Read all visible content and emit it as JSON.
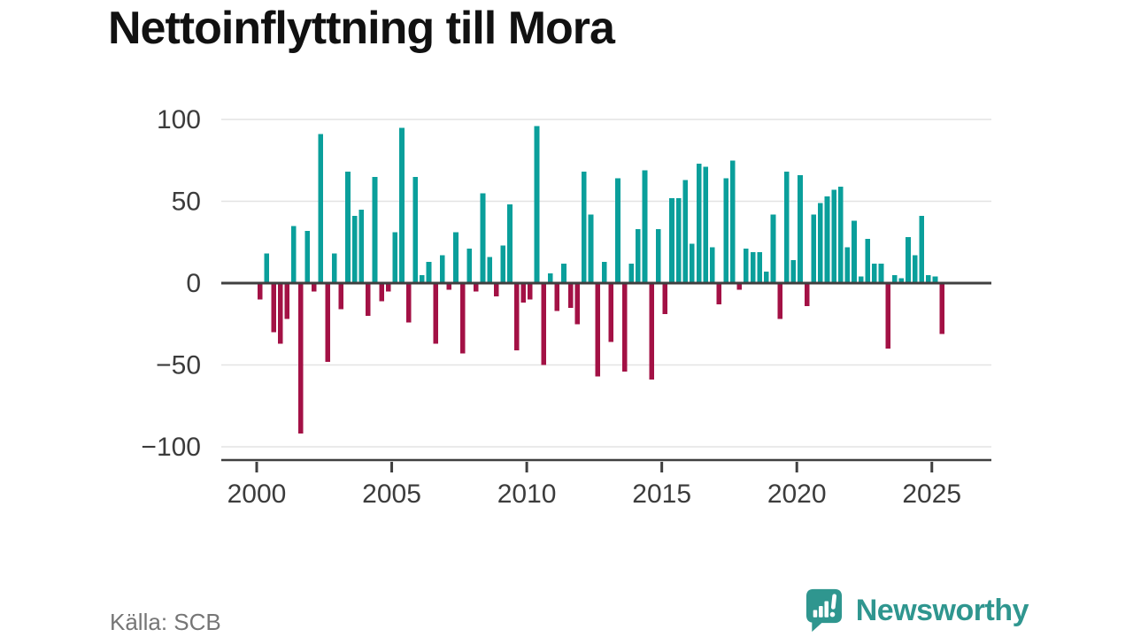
{
  "title": "Nettoinflyttning till Mora",
  "source": "Källa: SCB",
  "brand": {
    "name": "Newsworthy",
    "color": "#2f968f"
  },
  "chart_data": {
    "type": "bar",
    "title": "Nettoinflyttning till Mora",
    "xlabel": "",
    "ylabel": "",
    "period": "quarterly",
    "start": "2000Q1",
    "end": "2025Q2",
    "grid": true,
    "ylim": [
      -100,
      100
    ],
    "yticks": [
      100,
      50,
      0,
      -50,
      -100
    ],
    "ytick_labels": [
      "100",
      "50",
      "0",
      "−50",
      "−100"
    ],
    "xticks": [
      2000,
      2005,
      2010,
      2015,
      2020,
      2025
    ],
    "xtick_labels": [
      "2000",
      "2005",
      "2010",
      "2015",
      "2020",
      "2025"
    ],
    "positive_color": "#0a9f9b",
    "negative_color": "#a31145",
    "values": [
      -10,
      18,
      -30,
      -37,
      -22,
      35,
      -92,
      32,
      -5,
      91,
      -48,
      18,
      -16,
      68,
      41,
      45,
      -20,
      65,
      -11,
      -5,
      31,
      95,
      -24,
      65,
      5,
      13,
      -37,
      17,
      -4,
      31,
      -43,
      21,
      -5,
      55,
      16,
      -8,
      23,
      48,
      -41,
      -12,
      -10,
      96,
      -50,
      6,
      -17,
      12,
      -15,
      -25,
      68,
      42,
      -57,
      13,
      -36,
      64,
      -54,
      12,
      33,
      69,
      -59,
      33,
      -19,
      52,
      52,
      63,
      24,
      73,
      71,
      22,
      -13,
      64,
      75,
      -4,
      21,
      19,
      19,
      7,
      42,
      -22,
      68,
      14,
      66,
      -14,
      42,
      49,
      53,
      57,
      59,
      22,
      38,
      4,
      27,
      12,
      12,
      -40,
      5,
      3,
      28,
      17,
      41,
      5,
      4,
      -31
    ]
  }
}
